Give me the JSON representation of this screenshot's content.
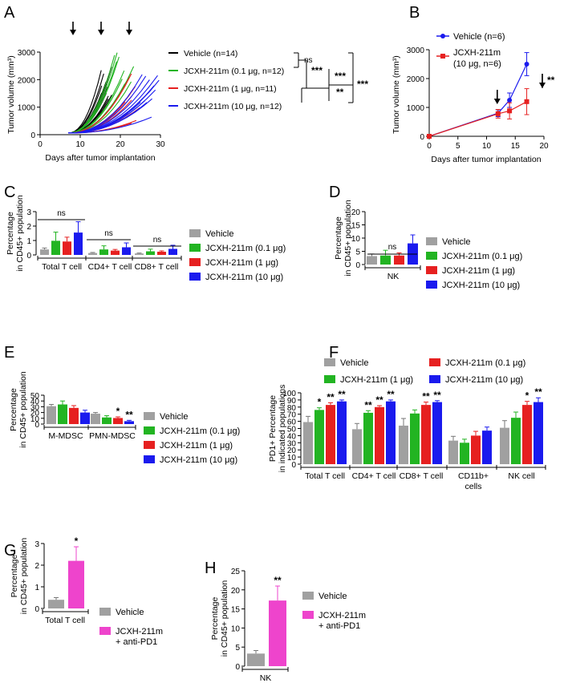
{
  "colors": {
    "black": "#000000",
    "green": "#22b422",
    "red": "#e62020",
    "blue": "#1a1aee",
    "gray": "#a0a0a0",
    "magenta": "#ee44cc"
  },
  "chart_data": [
    {
      "id": "A",
      "panel_label": "A",
      "type": "line",
      "xlabel": "Days after tumor implantation",
      "ylabel": "Tumor volume (mm³)",
      "xlim": [
        0,
        30
      ],
      "ylim": [
        0,
        3000
      ],
      "xticks": [
        "0",
        "10",
        "20",
        "30"
      ],
      "yticks": [
        "0",
        "1000",
        "2000",
        "3000"
      ],
      "arrows_at_days": [
        8,
        15,
        22
      ],
      "series": [
        {
          "name": "Vehicle (n=14)",
          "color": "black",
          "n": 14,
          "end_day_range": [
            15,
            18
          ],
          "end_value_range": [
            1200,
            2500
          ]
        },
        {
          "name": "JCXH-211m (0.1 μg, n=12)",
          "color": "green",
          "n": 12,
          "end_day_range": [
            18,
            25
          ],
          "end_value_range": [
            1500,
            3000
          ]
        },
        {
          "name": "JCXH-211m (1 μg, n=11)",
          "color": "red",
          "n": 11,
          "end_day_range": [
            21,
            25
          ],
          "end_value_range": [
            200,
            2600
          ]
        },
        {
          "name": "JCXH-211m (10 μg, n=12)",
          "color": "blue",
          "n": 12,
          "end_day_range": [
            25,
            30
          ],
          "end_value_range": [
            600,
            2200
          ]
        }
      ],
      "significance": [
        "ns",
        "***",
        "***",
        "**",
        "***"
      ]
    },
    {
      "id": "B",
      "panel_label": "B",
      "type": "line",
      "xlabel": "Days after tumor implantation",
      "ylabel": "Tumor volume (mm³)",
      "xlim": [
        0,
        20
      ],
      "ylim": [
        0,
        3000
      ],
      "xticks": [
        "0",
        "5",
        "10",
        "15",
        "20"
      ],
      "yticks": [
        "0",
        "1000",
        "2000",
        "3000"
      ],
      "arrow_at_day": 12,
      "series": [
        {
          "name": "Vehicle (n=6)",
          "color": "blue",
          "marker": "circle",
          "x": [
            0,
            12,
            14,
            17
          ],
          "y": [
            0,
            800,
            1250,
            2500
          ],
          "err": [
            0,
            120,
            250,
            400
          ]
        },
        {
          "name": "JCXH-211m (10 μg, n=6)",
          "color": "red",
          "marker": "square",
          "x": [
            0,
            12,
            14,
            17
          ],
          "y": [
            0,
            780,
            880,
            1200
          ],
          "err": [
            0,
            150,
            280,
            450
          ]
        }
      ],
      "significance": "**"
    },
    {
      "id": "C",
      "panel_label": "C",
      "type": "bar",
      "ylabel": "Percentage in CD45+ population",
      "ylim": [
        0,
        3
      ],
      "yticks": [
        "0",
        "1",
        "2",
        "3"
      ],
      "categories": [
        "Total T cell",
        "CD4+ T cell",
        "CD8+ T cell"
      ],
      "series": [
        {
          "name": "Vehicle",
          "color": "gray",
          "values": [
            0.38,
            0.13,
            0.1
          ],
          "err": [
            0.1,
            0.04,
            0.03
          ]
        },
        {
          "name": "JCXH-211m (0.1 μg)",
          "color": "green",
          "values": [
            0.98,
            0.38,
            0.25
          ],
          "err": [
            0.6,
            0.25,
            0.15
          ]
        },
        {
          "name": "JCXH-211m (1 μg)",
          "color": "red",
          "values": [
            0.93,
            0.3,
            0.22
          ],
          "err": [
            0.3,
            0.08,
            0.06
          ]
        },
        {
          "name": "JCXH-211m (10 μg)",
          "color": "blue",
          "values": [
            1.55,
            0.53,
            0.42
          ],
          "err": [
            0.75,
            0.3,
            0.25
          ]
        }
      ],
      "brackets": [
        "ns",
        "ns",
        "ns"
      ]
    },
    {
      "id": "D",
      "panel_label": "D",
      "type": "bar",
      "ylabel": "Percentage in CD45+ population",
      "ylim": [
        0,
        20
      ],
      "yticks": [
        "0",
        "5",
        "10",
        "15",
        "20"
      ],
      "categories": [
        "NK"
      ],
      "series": [
        {
          "name": "Vehicle",
          "color": "gray",
          "values": [
            3.2
          ],
          "err": [
            0.8
          ]
        },
        {
          "name": "JCXH-211m (0.1 μg)",
          "color": "green",
          "values": [
            3.4
          ],
          "err": [
            2.0
          ]
        },
        {
          "name": "JCXH-211m (1 μg)",
          "color": "red",
          "values": [
            3.4
          ],
          "err": [
            1.0
          ]
        },
        {
          "name": "JCXH-211m (10 μg)",
          "color": "blue",
          "values": [
            8.0
          ],
          "err": [
            3.2
          ]
        }
      ],
      "brackets": [
        "ns"
      ]
    },
    {
      "id": "E",
      "panel_label": "E",
      "type": "bar",
      "ylabel": "Percentage in CD45+ population",
      "ylim": [
        0,
        50
      ],
      "yticks": [
        "0",
        "10",
        "20",
        "30",
        "40",
        "50"
      ],
      "categories": [
        "M-MDSC",
        "PMN-MDSC"
      ],
      "series": [
        {
          "name": "Vehicle",
          "color": "gray",
          "values": [
            31,
            18
          ],
          "err": [
            3,
            2
          ]
        },
        {
          "name": "JCXH-211m (0.1 μg)",
          "color": "green",
          "values": [
            34,
            11.5
          ],
          "err": [
            6,
            3
          ]
        },
        {
          "name": "JCXH-211m (1 μg)",
          "color": "red",
          "values": [
            28,
            10.5
          ],
          "err": [
            4,
            2
          ],
          "stars": [
            "",
            "*"
          ]
        },
        {
          "name": "JCXH-211m (10 μg)",
          "color": "blue",
          "values": [
            20,
            5
          ],
          "err": [
            4,
            1.5
          ],
          "stars": [
            "",
            "**"
          ]
        }
      ]
    },
    {
      "id": "F",
      "panel_label": "F",
      "type": "bar",
      "ylabel": "PD1+ Percentage in indicated populations",
      "ylim": [
        0,
        100
      ],
      "yticks": [
        "0",
        "10",
        "20",
        "30",
        "40",
        "50",
        "60",
        "70",
        "80",
        "90",
        "100"
      ],
      "categories": [
        "Total T cell",
        "CD4+ T cell",
        "CD8+ T cell",
        "CD11b+ cells",
        "NK cell"
      ],
      "series": [
        {
          "name": "Vehicle",
          "color": "gray",
          "values": [
            59,
            49,
            54,
            33,
            51
          ],
          "err": [
            8,
            8,
            10,
            6,
            10
          ]
        },
        {
          "name": "JCXH-211m (1 μg)",
          "color": "green",
          "values": [
            76,
            72,
            71,
            30,
            65
          ],
          "err": [
            3,
            3,
            5,
            5,
            8
          ],
          "stars": [
            "*",
            "**",
            "",
            "",
            ""
          ]
        },
        {
          "name": "JCXH-211m (0.1 μg)",
          "color": "red",
          "values": [
            83,
            80,
            83,
            40,
            83
          ],
          "err": [
            3,
            2,
            4,
            6,
            5
          ],
          "stars": [
            "**",
            "**",
            "**",
            "",
            "*"
          ]
        },
        {
          "name": "JCXH-211m (10 μg)",
          "color": "blue",
          "values": [
            88,
            88,
            87,
            47,
            87
          ],
          "err": [
            2,
            2,
            2,
            5,
            6
          ],
          "stars": [
            "**",
            "**",
            "**",
            "",
            "**"
          ]
        }
      ]
    },
    {
      "id": "G",
      "panel_label": "G",
      "type": "bar",
      "ylabel": "Percentage in CD45+ population",
      "ylim": [
        0,
        3
      ],
      "yticks": [
        "0",
        "1",
        "2",
        "3"
      ],
      "categories": [
        "Total T cell"
      ],
      "series": [
        {
          "name": "Vehicle",
          "color": "gray",
          "values": [
            0.4
          ],
          "err": [
            0.1
          ]
        },
        {
          "name": "JCXH-211m + anti-PD1",
          "color": "magenta",
          "values": [
            2.2
          ],
          "err": [
            0.65
          ],
          "stars": [
            "*"
          ]
        }
      ]
    },
    {
      "id": "H",
      "panel_label": "H",
      "type": "bar",
      "ylabel": "Percentage in CD45+ population",
      "ylim": [
        0,
        25
      ],
      "yticks": [
        "0",
        "5",
        "10",
        "15",
        "20",
        "25"
      ],
      "categories": [
        "NK"
      ],
      "series": [
        {
          "name": "Vehicle",
          "color": "gray",
          "values": [
            3.3
          ],
          "err": [
            0.8
          ]
        },
        {
          "name": "JCXH-211m + anti-PD1",
          "color": "magenta",
          "values": [
            17.2
          ],
          "err": [
            3.8
          ],
          "stars": [
            "**"
          ]
        }
      ]
    }
  ]
}
